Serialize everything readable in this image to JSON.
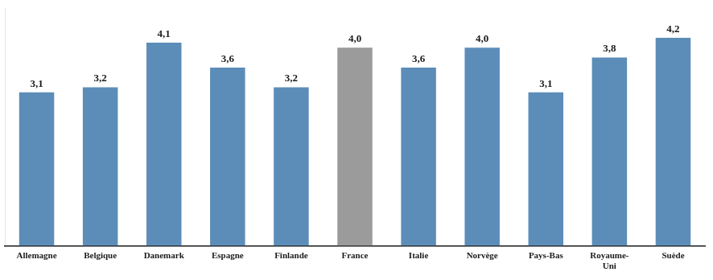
{
  "chart_data": {
    "type": "bar",
    "categories": [
      "Allemagne",
      "Belgique",
      "Danemark",
      "Espagne",
      "Finlande",
      "France",
      "Italie",
      "Norvège",
      "Pays-Bas",
      "Royaume-\nUni",
      "Suède"
    ],
    "values": [
      3.1,
      3.2,
      4.1,
      3.6,
      3.2,
      4.0,
      3.6,
      4.0,
      3.1,
      3.8,
      4.2
    ],
    "value_labels": [
      "3,1",
      "3,2",
      "4,1",
      "3,6",
      "3,2",
      "4,0",
      "3,6",
      "4,0",
      "3,1",
      "3,8",
      "4,2"
    ],
    "colors": [
      "#5B8DB8",
      "#5B8DB8",
      "#5B8DB8",
      "#5B8DB8",
      "#5B8DB8",
      "#9B9B9B",
      "#5B8DB8",
      "#5B8DB8",
      "#5B8DB8",
      "#5B8DB8",
      "#5B8DB8"
    ],
    "ylim": [
      0,
      4.8
    ],
    "grid": false,
    "data_labels": true,
    "tick_labels": "x"
  }
}
